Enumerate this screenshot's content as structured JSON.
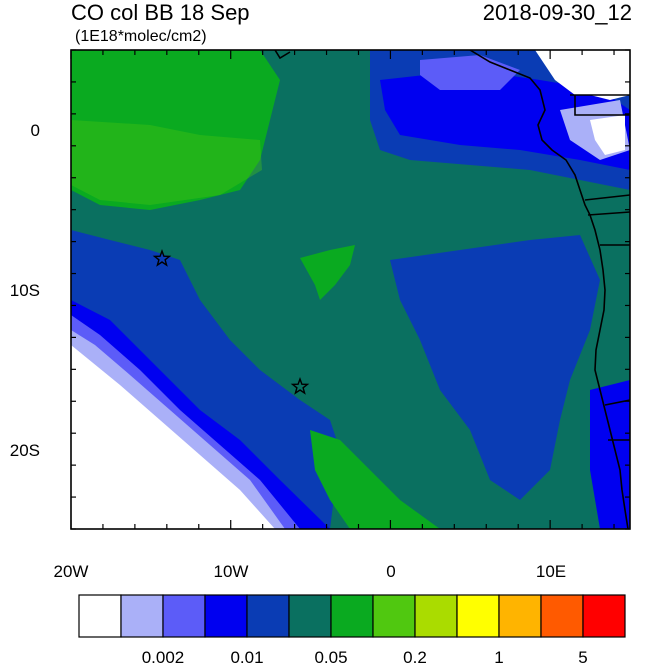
{
  "title": {
    "left": "CO col BB 18 Sep",
    "units": "(1E18*molec/cm2)",
    "right": "2018-09-30_12"
  },
  "axes": {
    "x_ticks": [
      {
        "value": -20,
        "label": "20W"
      },
      {
        "value": -10,
        "label": "10W"
      },
      {
        "value": 0,
        "label": "0"
      },
      {
        "value": 10,
        "label": "10E"
      }
    ],
    "y_ticks": [
      {
        "value": 0,
        "label": "0"
      },
      {
        "value": -10,
        "label": "10S"
      },
      {
        "value": -20,
        "label": "20S"
      }
    ],
    "lon_range": [
      -20,
      15
    ],
    "lat_range": [
      -25,
      5
    ]
  },
  "colorbar": {
    "colors": [
      "#ffffff",
      "#aab0f8",
      "#5c5cf8",
      "#0000f0",
      "#0a3cb4",
      "#0a7060",
      "#0aaa20",
      "#50c810",
      "#aadc00",
      "#ffff00",
      "#ffb400",
      "#ff5a00",
      "#ff0000"
    ],
    "labels": [
      "0.002",
      "0.01",
      "0.05",
      "0.2",
      "1",
      "5"
    ]
  },
  "markers": [
    {
      "name": "star-marker-1",
      "lon": -14.3,
      "lat": -8.1
    },
    {
      "name": "star-marker-2",
      "lon": -5.6,
      "lat": -16.1
    }
  ]
}
